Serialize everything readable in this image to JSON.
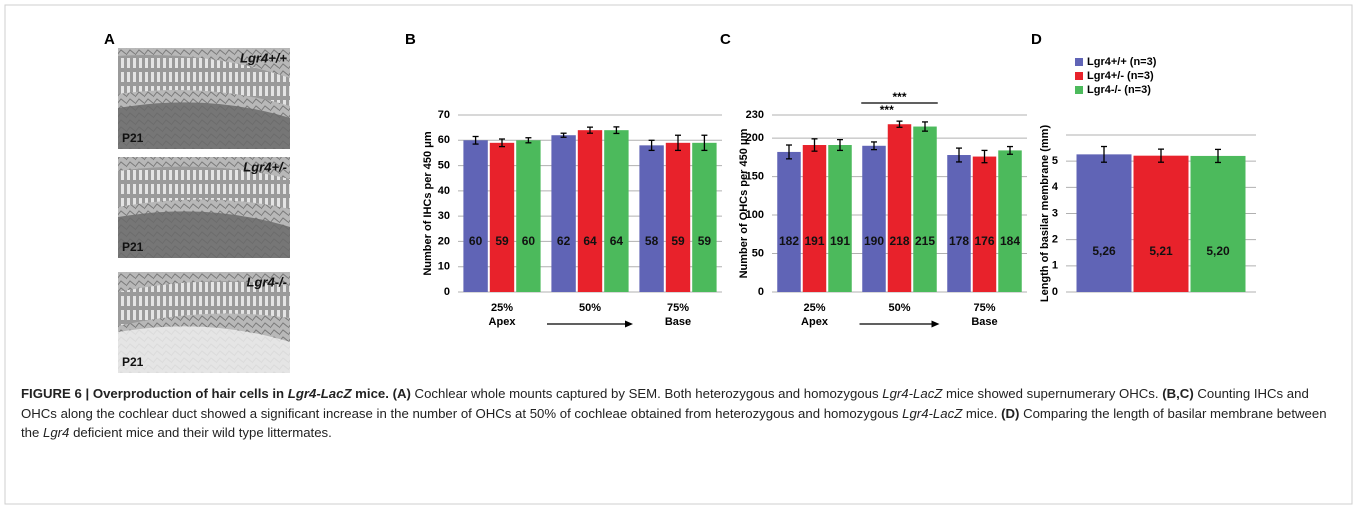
{
  "panel_a": {
    "label": "A",
    "images": [
      {
        "genotype": "Lgr4+/+",
        "age": "P21"
      },
      {
        "genotype": "Lgr4+/-",
        "age": "P21"
      },
      {
        "genotype": "Lgr4-/-",
        "age": "P21"
      }
    ]
  },
  "chart_data": [
    {
      "type": "bar",
      "panel": "B",
      "ylabel": "Number of IHCs per 450 μm",
      "categories": [
        "25%",
        "50%",
        "75%"
      ],
      "sublabels": [
        "Apex",
        null,
        "Base"
      ],
      "ylim": [
        0,
        70
      ],
      "yticks": [
        0,
        10,
        20,
        30,
        40,
        50,
        60,
        70
      ],
      "grid": true,
      "series": [
        {
          "color": "#6064b6",
          "values": [
            60,
            62,
            58
          ],
          "errors": [
            1.5,
            0.8,
            2
          ]
        },
        {
          "color": "#e8222b",
          "values": [
            59,
            64,
            59
          ],
          "errors": [
            1.5,
            1.2,
            3
          ]
        },
        {
          "color": "#4cba5c",
          "values": [
            60,
            64,
            59
          ],
          "errors": [
            1,
            1.3,
            3
          ]
        }
      ]
    },
    {
      "type": "bar",
      "panel": "C",
      "ylabel": "Number of OHCs per 450 μm",
      "categories": [
        "25%",
        "50%",
        "75%"
      ],
      "sublabels": [
        "Apex",
        null,
        "Base"
      ],
      "ylim": [
        0,
        230
      ],
      "yticks": [
        0,
        50,
        100,
        150,
        200,
        230
      ],
      "grid": true,
      "annotations": [
        "***",
        "***"
      ],
      "series": [
        {
          "color": "#6064b6",
          "values": [
            182,
            190,
            178
          ],
          "errors": [
            9,
            5,
            9
          ]
        },
        {
          "color": "#e8222b",
          "values": [
            191,
            218,
            176
          ],
          "errors": [
            8,
            4,
            8
          ]
        },
        {
          "color": "#4cba5c",
          "values": [
            191,
            215,
            184
          ],
          "errors": [
            7,
            6,
            5
          ]
        }
      ]
    },
    {
      "type": "bar",
      "panel": "D",
      "ylabel": "Length of basilar membrane (mm)",
      "ylim": [
        0,
        6
      ],
      "yticks": [
        0,
        1,
        2,
        3,
        4,
        5
      ],
      "grid": true,
      "legend": "top",
      "series": [
        {
          "name": "Lgr4+/+ (n=3)",
          "color": "#6064b6",
          "values": [
            5.26
          ],
          "errors": [
            0.3
          ],
          "value_labels": [
            "5,26"
          ]
        },
        {
          "name": "Lgr4+/- (n=3)",
          "color": "#e8222b",
          "values": [
            5.21
          ],
          "errors": [
            0.25
          ],
          "value_labels": [
            "5,21"
          ]
        },
        {
          "name": "Lgr4-/- (n=3)",
          "color": "#4cba5c",
          "values": [
            5.2
          ],
          "errors": [
            0.25
          ],
          "value_labels": [
            "5,20"
          ]
        }
      ]
    }
  ],
  "caption": [
    {
      "text": "FIGURE 6 | Overproduction of hair cells in ",
      "style": "b"
    },
    {
      "text": "Lgr4-LacZ",
      "style": "bi"
    },
    {
      "text": " mice. (A)",
      "style": "b"
    },
    {
      "text": " Cochlear whole mounts captured by SEM. Both heterozygous and homozygous ",
      "style": "n"
    },
    {
      "text": "Lgr4-LacZ",
      "style": "i"
    },
    {
      "text": " mice showed supernumerary OHCs. ",
      "style": "n"
    },
    {
      "text": "(B,C)",
      "style": "b"
    },
    {
      "text": " Counting IHCs and OHCs along the cochlear duct showed a significant increase in the number of OHCs at 50% of cochleae obtained from heterozygous and homozygous ",
      "style": "n"
    },
    {
      "text": "Lgr4-LacZ",
      "style": "i"
    },
    {
      "text": " mice. ",
      "style": "n"
    },
    {
      "text": "(D)",
      "style": "b"
    },
    {
      "text": " Comparing the length of basilar membrane between the ",
      "style": "n"
    },
    {
      "text": "Lgr4",
      "style": "i"
    },
    {
      "text": " deficient mice and their wild type littermates.",
      "style": "n"
    }
  ]
}
